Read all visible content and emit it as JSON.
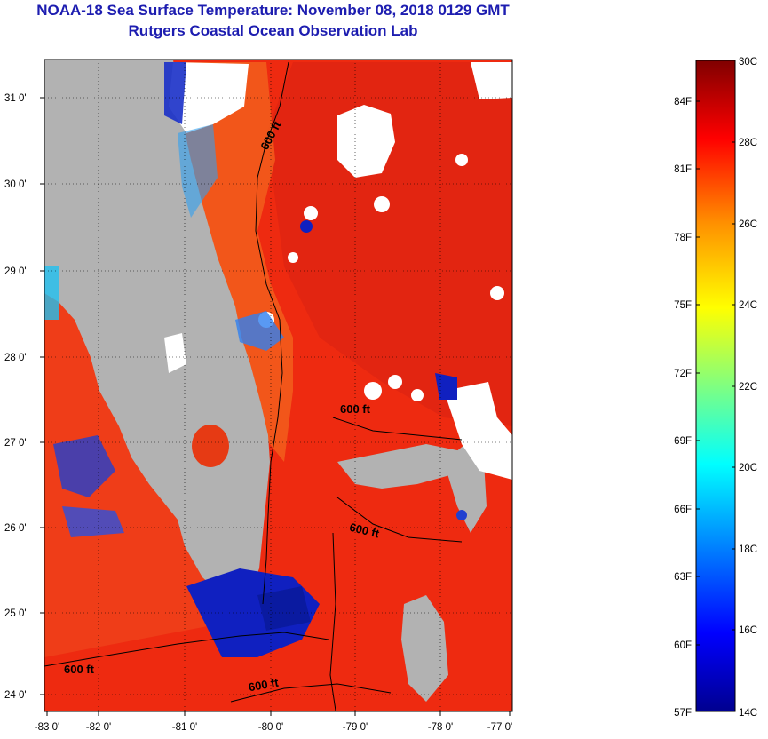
{
  "header": {
    "title": "NOAA-18 Sea Surface Temperature:  November 08, 2018 0129 GMT",
    "subtitle": "Rutgers Coastal Ocean Observation Lab"
  },
  "map": {
    "lat_labels": [
      "31 0'",
      "30 0'",
      "29 0'",
      "28 0'",
      "27 0'",
      "26 0'",
      "25 0'",
      "24 0'"
    ],
    "lon_labels": [
      "-83 0'",
      "-82 0'",
      "-81 0'",
      "-80 0'",
      "-79 0'",
      "-78 0'",
      "-77 0'"
    ],
    "isobath_label": "600 ft",
    "colors": {
      "land": "#b2b2b2",
      "cloud": "#ffffff",
      "warm_water": "#ee2a10",
      "cool_water": "#1020c0"
    }
  },
  "colorbar": {
    "fahrenheit_labels": [
      "84F",
      "81F",
      "78F",
      "75F",
      "72F",
      "69F",
      "66F",
      "63F",
      "60F",
      "57F"
    ],
    "celsius_labels": [
      "30C",
      "28C",
      "26C",
      "24C",
      "22C",
      "20C",
      "18C",
      "16C",
      "14C"
    ]
  }
}
